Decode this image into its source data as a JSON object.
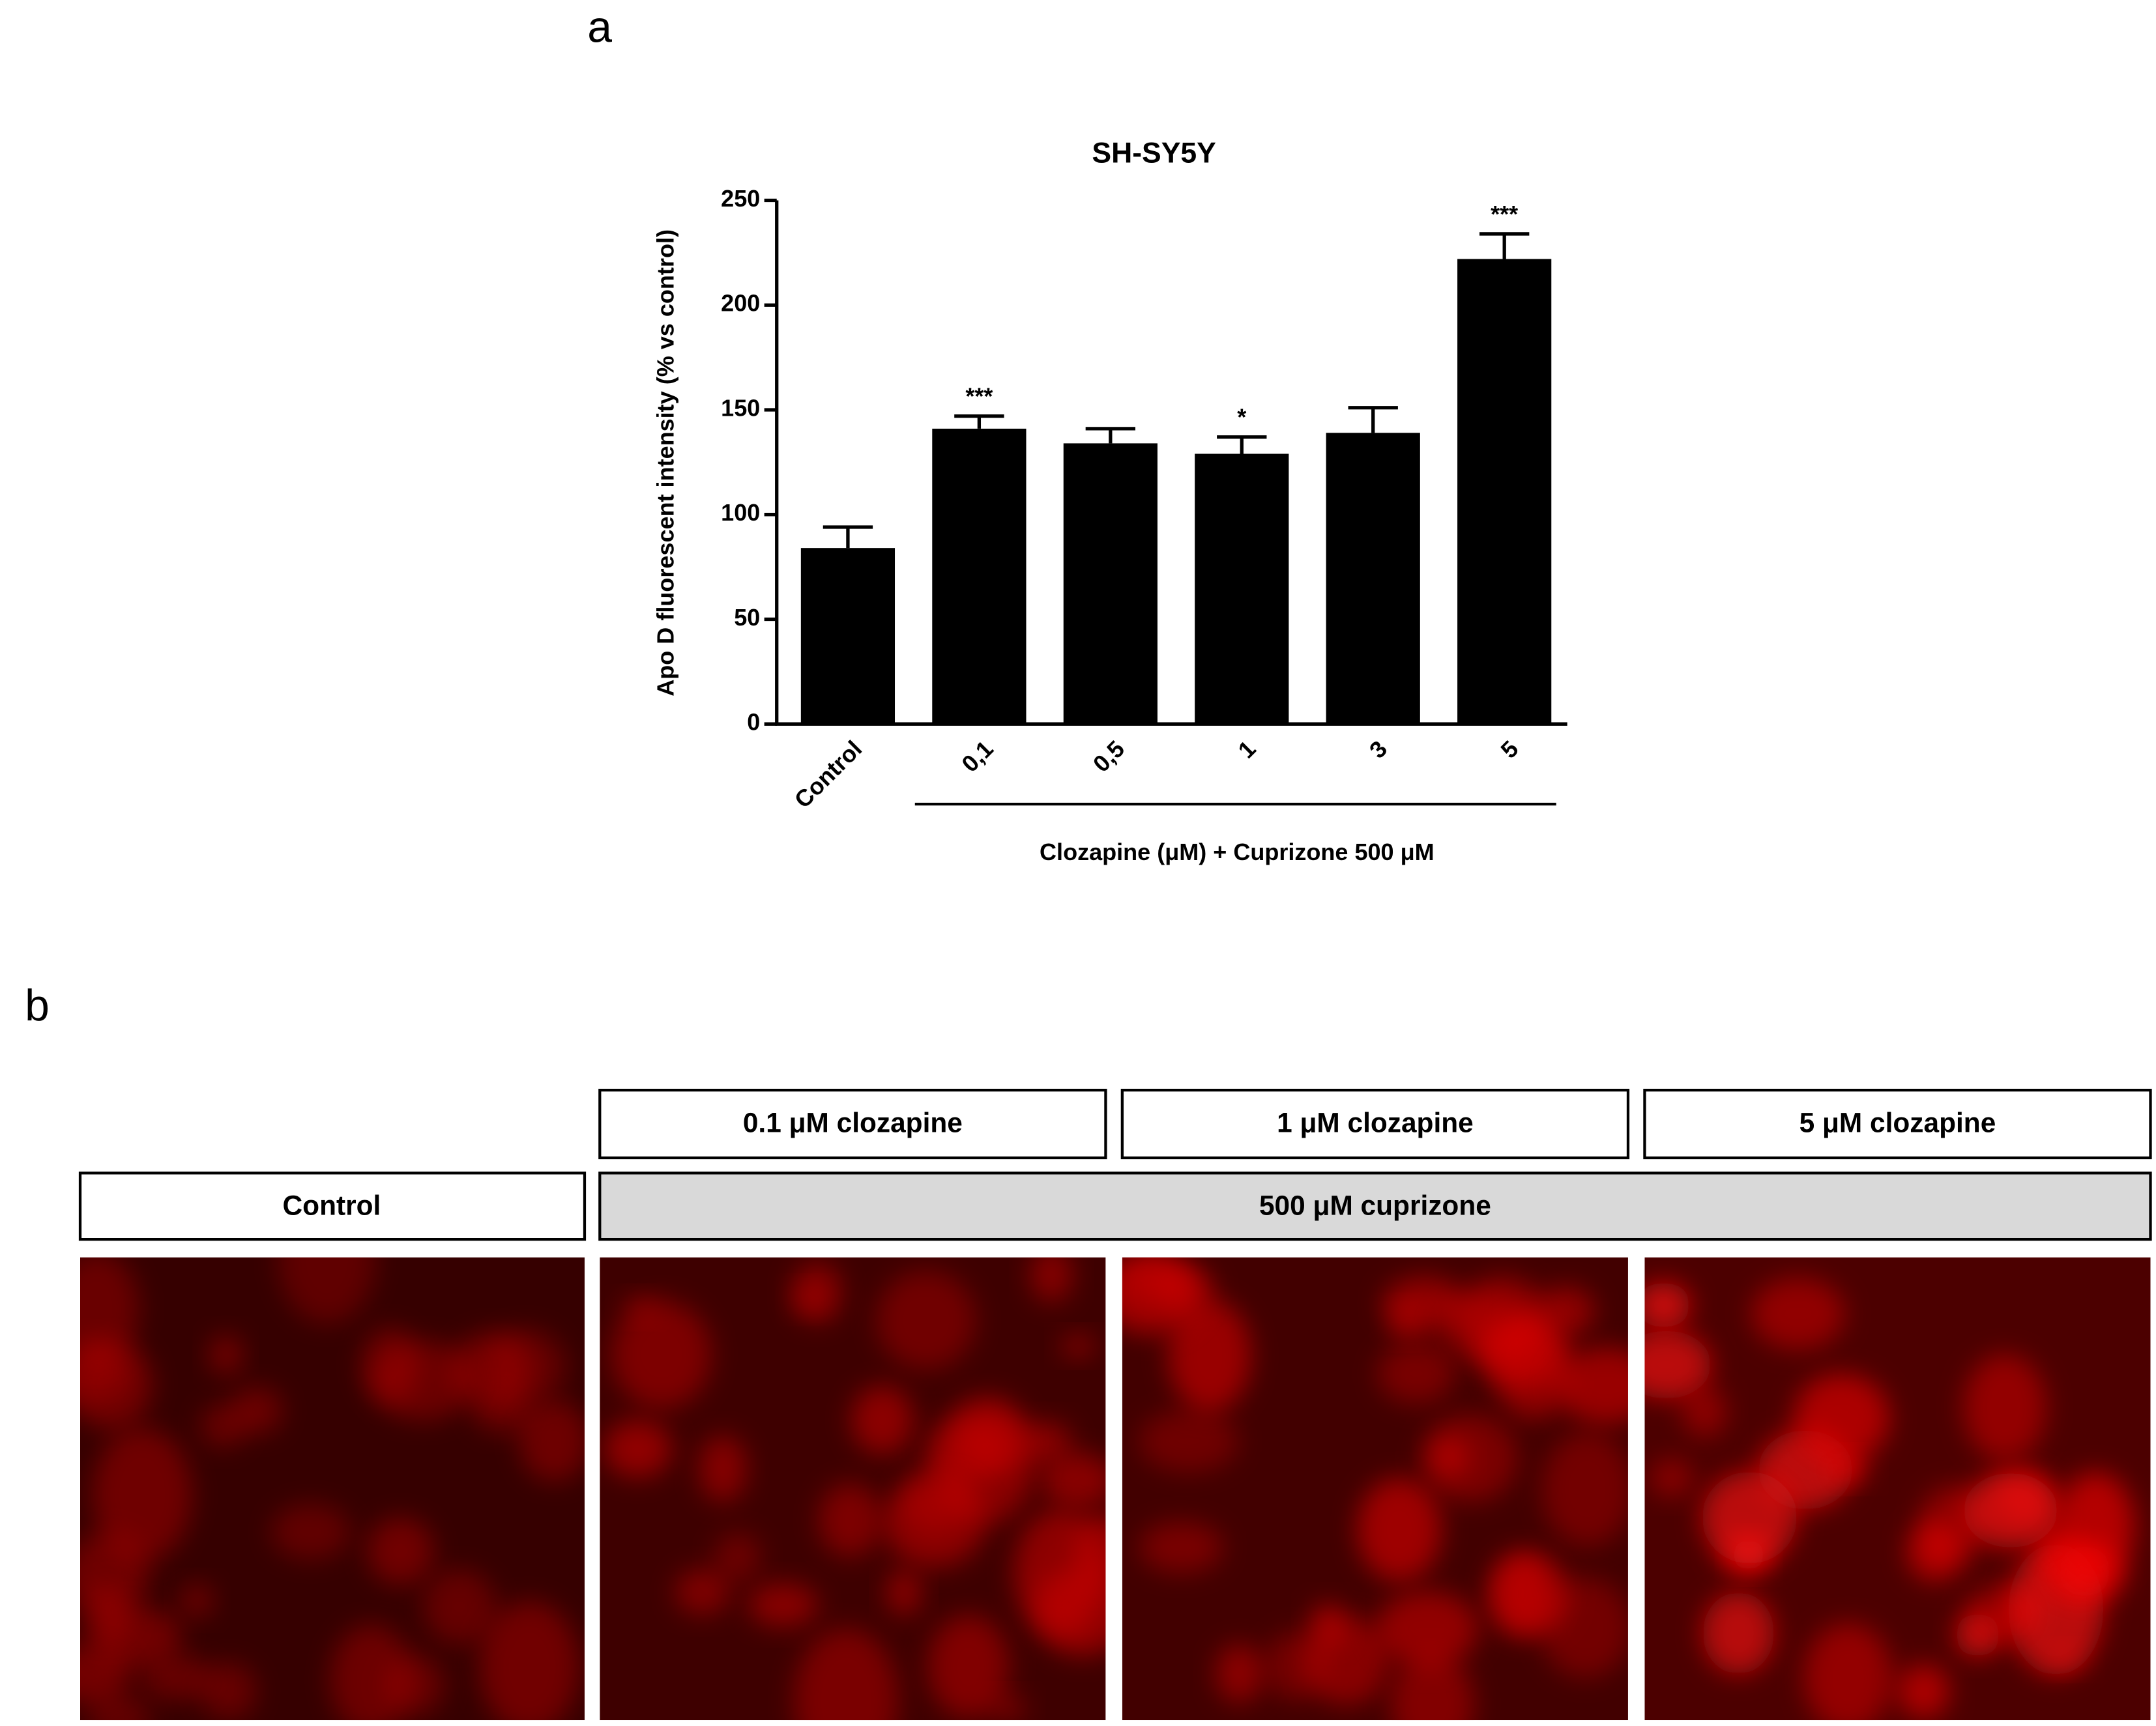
{
  "panel_a_label": "a",
  "chart_data": {
    "type": "bar",
    "title": "SH-SY5Y",
    "ylabel": "Apo D fluorescent intensity (% vs control)",
    "xlabel": "Clozapine (μM) + Cuprizone 500 μM",
    "categories": [
      "Control",
      "0,1",
      "0,5",
      "1",
      "3",
      "5"
    ],
    "values": [
      84,
      141,
      134,
      129,
      139,
      222
    ],
    "errors": [
      10,
      6,
      7,
      8,
      12,
      12
    ],
    "significance": [
      null,
      "***",
      null,
      "*",
      null,
      "***"
    ],
    "color": "#000000",
    "ylim": [
      0,
      250
    ],
    "yticks": [
      0,
      50,
      100,
      150,
      200,
      250
    ],
    "grid": false
  },
  "panel_b": {
    "label": "b",
    "treatments": [
      "0.1 μM clozapine",
      "1 μM clozapine",
      "5 μM clozapine"
    ],
    "control": "Control",
    "cuprizone": "500 μM cuprizone"
  }
}
